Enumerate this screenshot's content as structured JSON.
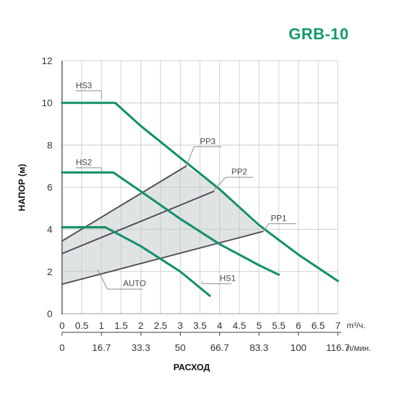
{
  "chart_data": {
    "type": "line",
    "title": "GRB-10",
    "ylabel": "НАПОР (м)",
    "xlabel": "РАСХОД",
    "ylim": [
      0,
      12
    ],
    "xlim": [
      0,
      7
    ],
    "y_ticks": [
      "0",
      "2",
      "4",
      "6",
      "8",
      "10",
      "12"
    ],
    "x_ticks_m3": [
      "0",
      "0.5",
      "1",
      "1.5",
      "2",
      "2.5",
      "3",
      "3.5",
      "4",
      "4.5",
      "5",
      "5.5",
      "6",
      "6.5",
      "7"
    ],
    "x_unit_m3": "m³/ч.",
    "x_ticks_lmin": [
      {
        "x": 0,
        "label": "0"
      },
      {
        "x": 1,
        "label": "16.7"
      },
      {
        "x": 2,
        "label": "33.3"
      },
      {
        "x": 3,
        "label": "50"
      },
      {
        "x": 4,
        "label": "66.7"
      },
      {
        "x": 5,
        "label": "83.3"
      },
      {
        "x": 6,
        "label": "100"
      },
      {
        "x": 7,
        "label": "116.7"
      }
    ],
    "x_unit_lmin": "л/мин.",
    "grid": true,
    "colors": {
      "curve": "#13906a",
      "prop": "#4d4d52",
      "area": "#dfe3e4",
      "grid": "#c4c4c4",
      "title": "#149b6c"
    },
    "series": [
      {
        "name": "HS3",
        "kind": "curve",
        "x": [
          0,
          1.35,
          2,
          3,
          4,
          5,
          6,
          7
        ],
        "y": [
          10.0,
          10.0,
          8.9,
          7.4,
          5.9,
          4.2,
          2.8,
          1.55
        ]
      },
      {
        "name": "HS2",
        "kind": "curve",
        "x": [
          0,
          1.3,
          2,
          3,
          4,
          5,
          5.5
        ],
        "y": [
          6.7,
          6.7,
          5.8,
          4.5,
          3.3,
          2.3,
          1.85
        ]
      },
      {
        "name": "HS1",
        "kind": "curve",
        "x": [
          0,
          1.1,
          2,
          3,
          3.75
        ],
        "y": [
          4.1,
          4.1,
          3.2,
          2.0,
          0.85
        ]
      },
      {
        "name": "PP3",
        "kind": "prop",
        "x": [
          0,
          3.15
        ],
        "y": [
          3.45,
          7.0
        ]
      },
      {
        "name": "PP2",
        "kind": "prop",
        "x": [
          0,
          3.85
        ],
        "y": [
          2.85,
          5.8
        ]
      },
      {
        "name": "PP1",
        "kind": "prop",
        "x": [
          0,
          5.1
        ],
        "y": [
          1.4,
          3.9
        ]
      }
    ],
    "annotations": [
      {
        "text": "HS3",
        "x": 0.35,
        "y": 10.7,
        "tx": 1.0,
        "ty": 10.2,
        "ux0": 0.35,
        "ux1": 1.0
      },
      {
        "text": "HS2",
        "x": 0.35,
        "y": 7.05,
        "tx": 1.0,
        "ty": 6.75,
        "ux0": 0.35,
        "ux1": 1.0
      },
      {
        "text": "PP3",
        "x": 3.5,
        "y": 8.05,
        "tx": 3.15,
        "ty": 7.0,
        "ux0": 3.35,
        "ux1": 4.05
      },
      {
        "text": "PP2",
        "x": 4.3,
        "y": 6.6,
        "tx": 3.85,
        "ty": 5.85,
        "ux0": 4.15,
        "ux1": 4.85
      },
      {
        "text": "PP1",
        "x": 5.3,
        "y": 4.4,
        "tx": 5.1,
        "ty": 3.9,
        "ux0": 5.25,
        "ux1": 5.95
      },
      {
        "text": "HS1",
        "x": 4.0,
        "y": 1.55,
        "tx": 3.55,
        "ty": 1.55,
        "ux0": 3.55,
        "ux1": 4.3
      },
      {
        "text": "AUTO",
        "x": 1.55,
        "y": 1.3,
        "tx": 0.9,
        "ty": 2.1,
        "ux0": 1.15,
        "ux1": 2.05
      }
    ]
  }
}
